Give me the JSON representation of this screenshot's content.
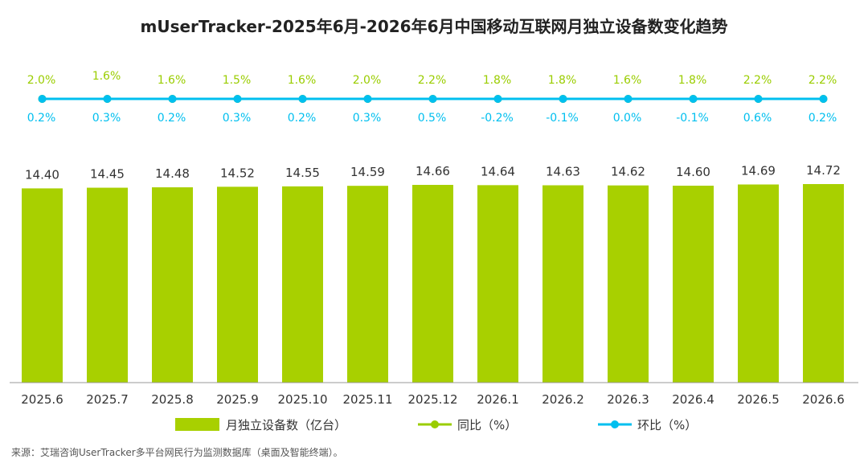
{
  "chart_data": {
    "type": "bar",
    "title": "mUserTracker-2025年6月-2026年6月中国移动互联网月独立设备数变化趋势",
    "categories": [
      "2025.6",
      "2025.7",
      "2025.8",
      "2025.9",
      "2025.10",
      "2025.11",
      "2025.12",
      "2026.1",
      "2026.2",
      "2026.3",
      "2026.4",
      "2026.5",
      "2026.6"
    ],
    "ylim": [
      0,
      14.72
    ],
    "grid": false,
    "legend_position": "bottom",
    "series": [
      {
        "name": "月独立设备数（亿台）",
        "kind": "bar",
        "color": "#a8d000",
        "values": [
          14.4,
          14.45,
          14.48,
          14.52,
          14.55,
          14.59,
          14.66,
          14.64,
          14.63,
          14.62,
          14.6,
          14.69,
          14.72
        ],
        "labels": [
          "14.40",
          "14.45",
          "14.48",
          "14.52",
          "14.55",
          "14.59",
          "14.66",
          "14.64",
          "14.63",
          "14.62",
          "14.60",
          "14.69",
          "14.72"
        ]
      },
      {
        "name": "同比（%）",
        "kind": "line",
        "color": "#9acd00",
        "values": [
          2.0,
          1.6,
          1.6,
          1.5,
          1.6,
          2.0,
          2.2,
          1.8,
          1.8,
          1.6,
          1.8,
          2.2,
          2.2
        ],
        "labels": [
          "2.0%",
          "1.6%",
          "1.6%",
          "1.5%",
          "1.6%",
          "2.0%",
          "2.2%",
          "1.8%",
          "1.8%",
          "1.6%",
          "1.8%",
          "2.2%",
          "2.2%"
        ]
      },
      {
        "name": "环比（%）",
        "kind": "line",
        "color": "#00bfef",
        "values": [
          0.2,
          0.3,
          0.2,
          0.3,
          0.2,
          0.3,
          0.5,
          -0.2,
          -0.1,
          0.0,
          -0.1,
          0.6,
          0.2
        ],
        "labels": [
          "0.2%",
          "0.3%",
          "0.2%",
          "0.3%",
          "0.2%",
          "0.3%",
          "0.5%",
          "-0.2%",
          "-0.1%",
          "0.0%",
          "-0.1%",
          "0.6%",
          "0.2%"
        ]
      }
    ],
    "source": "来源：艾瑞咨询UserTracker多平台网民行为监测数据库（桌面及智能终端）。"
  }
}
